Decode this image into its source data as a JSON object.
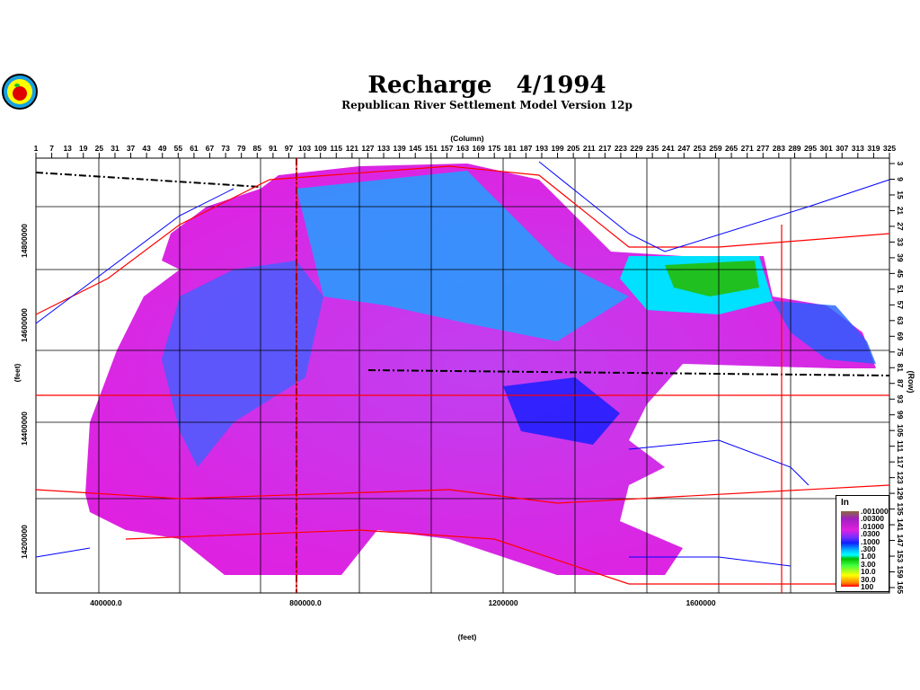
{
  "title": "Recharge   4/1994",
  "subtitle": "Republican River Settlement Model Version 12p",
  "logo": {
    "icon": "apple-seal-logo"
  },
  "top_axis": {
    "label": "(Column)",
    "ticks": [
      "1",
      "7",
      "13",
      "19",
      "25",
      "31",
      "37",
      "43",
      "49",
      "55",
      "61",
      "67",
      "73",
      "79",
      "85",
      "91",
      "97",
      "103",
      "109",
      "115",
      "121",
      "127",
      "133",
      "139",
      "145",
      "151",
      "157",
      "163",
      "169",
      "175",
      "181",
      "187",
      "193",
      "199",
      "205",
      "211",
      "217",
      "223",
      "229",
      "235",
      "241",
      "247",
      "253",
      "259",
      "265",
      "271",
      "277",
      "283",
      "289",
      "295",
      "301",
      "307",
      "313",
      "319",
      "325"
    ]
  },
  "right_axis": {
    "label": "(Row)",
    "ticks": [
      "3",
      "9",
      "15",
      "21",
      "27",
      "33",
      "39",
      "45",
      "51",
      "57",
      "63",
      "69",
      "75",
      "81",
      "87",
      "93",
      "99",
      "105",
      "111",
      "117",
      "123",
      "129",
      "135",
      "141",
      "147",
      "153",
      "159",
      "165"
    ]
  },
  "left_axis": {
    "label": "(feet)",
    "ticks": [
      "14800000",
      "14600000",
      "14400000",
      "14200000"
    ]
  },
  "bottom_axis": {
    "label": "(feet)",
    "ticks": [
      "400000.0",
      "800000.0",
      "1200000",
      "1600000"
    ]
  },
  "legend": {
    "title": "In",
    "labels": [
      ".001000",
      ".00300",
      ".01000",
      ".0300",
      ".1000",
      ".300",
      "1.00",
      "3.00",
      "10.0",
      "30.0",
      "100"
    ]
  },
  "colors": {
    "roads": "#ff0000",
    "rivers": "#0000ff",
    "counties": "#000000",
    "low": "#e020e0",
    "mid": "#00c0ff",
    "high": "#00c000"
  }
}
